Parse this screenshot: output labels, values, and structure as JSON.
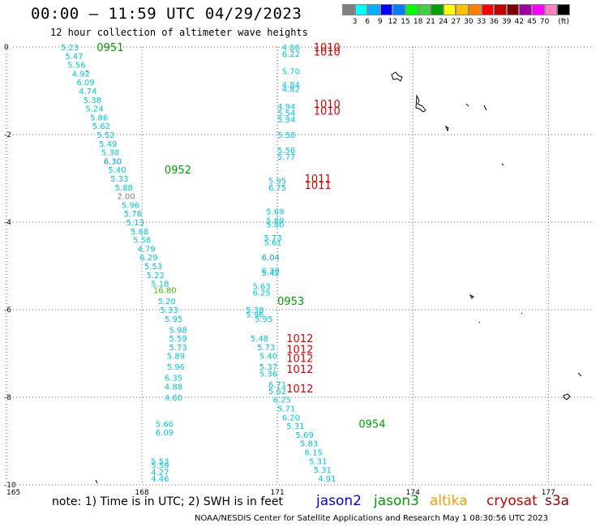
{
  "header": {
    "title": "00:00 – 11:59 UTC 04/29/2023",
    "subtitle": "12 hour collection of altimeter wave heights"
  },
  "legend": {
    "colors": [
      "#7f7f7f",
      "#00ffff",
      "#00b0ff",
      "#0000ff",
      "#0080ff",
      "#00ff00",
      "#40d040",
      "#00a000",
      "#ffff00",
      "#ffc000",
      "#ff8000",
      "#ff0000",
      "#c00000",
      "#800000",
      "#a000a0",
      "#ff00ff",
      "#ff80c0",
      "#000000"
    ],
    "labels": [
      "3",
      "6",
      "9",
      "12",
      "15",
      "18",
      "21",
      "24",
      "27",
      "30",
      "33",
      "36",
      "39",
      "42",
      "45",
      "70",
      "(ft)"
    ]
  },
  "footer": {
    "note": "note:  1) Time is in UTC;  2) SWH is in feet",
    "satellites": [
      {
        "name": "jason2",
        "color": "#0000ff"
      },
      {
        "name": "jason3",
        "color": "#00a000"
      },
      {
        "name": "altika",
        "color": "#ff9900"
      },
      {
        "name": "cryosat",
        "color": "#cc0000"
      },
      {
        "name": "s3a",
        "color": "#990000"
      }
    ],
    "credit": "NOAA/NESDIS Center for Satellite Applications and Research    May  1 08:30:56 UTC 2023"
  },
  "chart_data": {
    "type": "scatter",
    "xlim": [
      165,
      178
    ],
    "ylim": [
      -10,
      0
    ],
    "x_ticks": [
      "165",
      "168",
      "171",
      "174",
      "177"
    ],
    "y_ticks": [
      "0",
      "-2",
      "-4",
      "-6",
      "-8",
      "-10"
    ],
    "grid": "dotted",
    "times": [
      {
        "label": "0951",
        "x": 167.0,
        "y": 0.0,
        "color": "#00a000"
      },
      {
        "label": "0952",
        "x": 168.5,
        "y": -2.8,
        "color": "#00a000"
      },
      {
        "label": "0953",
        "x": 171.0,
        "y": -5.8,
        "color": "#00a000"
      },
      {
        "label": "0954",
        "x": 172.8,
        "y": -8.6,
        "color": "#00a000"
      },
      {
        "label": "1010",
        "x": 171.8,
        "y": 0.0,
        "color": "#dd0000"
      },
      {
        "label": "1010",
        "x": 171.8,
        "y": -0.1,
        "color": "#dd0000"
      },
      {
        "label": "1010",
        "x": 171.8,
        "y": -1.3,
        "color": "#dd0000"
      },
      {
        "label": "1010",
        "x": 171.8,
        "y": -1.45,
        "color": "#dd0000"
      },
      {
        "label": "1011",
        "x": 171.6,
        "y": -3.0,
        "color": "#dd0000"
      },
      {
        "label": "1011",
        "x": 171.6,
        "y": -3.15,
        "color": "#dd0000"
      },
      {
        "label": "1012",
        "x": 171.2,
        "y": -6.65,
        "color": "#dd0000"
      },
      {
        "label": "1012",
        "x": 171.2,
        "y": -6.9,
        "color": "#dd0000"
      },
      {
        "label": "1012",
        "x": 171.2,
        "y": -7.1,
        "color": "#dd0000"
      },
      {
        "label": "1012",
        "x": 171.2,
        "y": -7.35,
        "color": "#dd0000"
      },
      {
        "label": "1012",
        "x": 171.2,
        "y": -7.8,
        "color": "#dd0000"
      }
    ],
    "points": [
      {
        "x": 166.2,
        "y": 0.0,
        "v": "5.23",
        "c": "#00c8e0"
      },
      {
        "x": 166.3,
        "y": -0.2,
        "v": "5.47",
        "c": "#00c8e0"
      },
      {
        "x": 166.35,
        "y": -0.4,
        "v": "5.56",
        "c": "#00c8e0"
      },
      {
        "x": 166.45,
        "y": -0.6,
        "v": "4.92",
        "c": "#00c8e0"
      },
      {
        "x": 166.55,
        "y": -0.8,
        "v": "6.09",
        "c": "#00c8e0"
      },
      {
        "x": 166.6,
        "y": -1.0,
        "v": "4.74",
        "c": "#00c8e0"
      },
      {
        "x": 166.7,
        "y": -1.2,
        "v": "5.38",
        "c": "#00c8e0"
      },
      {
        "x": 166.75,
        "y": -1.4,
        "v": "5.24",
        "c": "#00c8e0"
      },
      {
        "x": 166.85,
        "y": -1.6,
        "v": "5.86",
        "c": "#00c8e0"
      },
      {
        "x": 166.9,
        "y": -1.8,
        "v": "5.62",
        "c": "#00c8e0"
      },
      {
        "x": 167.0,
        "y": -2.0,
        "v": "5.52",
        "c": "#00c8e0"
      },
      {
        "x": 167.05,
        "y": -2.2,
        "v": "5.49",
        "c": "#00c8e0"
      },
      {
        "x": 167.1,
        "y": -2.4,
        "v": "5.38",
        "c": "#00c8e0"
      },
      {
        "x": 167.15,
        "y": -2.6,
        "v": "6.30",
        "c": "#00a0d0"
      },
      {
        "x": 167.25,
        "y": -2.8,
        "v": "5.40",
        "c": "#00c8e0"
      },
      {
        "x": 167.3,
        "y": -3.0,
        "v": "5.33",
        "c": "#00c8e0"
      },
      {
        "x": 167.4,
        "y": -3.2,
        "v": "5.88",
        "c": "#00c8e0"
      },
      {
        "x": 167.45,
        "y": -3.4,
        "v": "2.00",
        "c": "#808080"
      },
      {
        "x": 167.55,
        "y": -3.6,
        "v": "5.96",
        "c": "#00c8e0"
      },
      {
        "x": 167.6,
        "y": -3.8,
        "v": "5.76",
        "c": "#00c8e0"
      },
      {
        "x": 167.65,
        "y": -4.0,
        "v": "5.13",
        "c": "#00c8e0"
      },
      {
        "x": 167.75,
        "y": -4.2,
        "v": "5.68",
        "c": "#00c8e0"
      },
      {
        "x": 167.8,
        "y": -4.4,
        "v": "5.58",
        "c": "#00c8e0"
      },
      {
        "x": 167.9,
        "y": -4.6,
        "v": "4.79",
        "c": "#00c8e0"
      },
      {
        "x": 167.95,
        "y": -4.8,
        "v": "6.29",
        "c": "#00c8e0"
      },
      {
        "x": 168.05,
        "y": -5.0,
        "v": "5.53",
        "c": "#00c8e0"
      },
      {
        "x": 168.1,
        "y": -5.2,
        "v": "5.22",
        "c": "#00c8e0"
      },
      {
        "x": 168.2,
        "y": -5.4,
        "v": "5.18",
        "c": "#00c8e0"
      },
      {
        "x": 168.25,
        "y": -5.55,
        "v": "16.80",
        "c": "#40c000"
      },
      {
        "x": 168.35,
        "y": -5.8,
        "v": "5.20",
        "c": "#00c8e0"
      },
      {
        "x": 168.4,
        "y": -6.0,
        "v": "5.33",
        "c": "#00c8e0"
      },
      {
        "x": 168.5,
        "y": -6.2,
        "v": "5.95",
        "c": "#00c8e0"
      },
      {
        "x": 168.6,
        "y": -6.45,
        "v": "5.98",
        "c": "#00c8e0"
      },
      {
        "x": 168.6,
        "y": -6.65,
        "v": "5.59",
        "c": "#00c8e0"
      },
      {
        "x": 168.6,
        "y": -6.85,
        "v": "5.73",
        "c": "#00c8e0"
      },
      {
        "x": 168.55,
        "y": -7.05,
        "v": "5.89",
        "c": "#00c8e0"
      },
      {
        "x": 168.55,
        "y": -7.3,
        "v": "5.96",
        "c": "#00c8e0"
      },
      {
        "x": 168.5,
        "y": -7.55,
        "v": "6.35",
        "c": "#00c8e0"
      },
      {
        "x": 168.5,
        "y": -7.75,
        "v": "4.88",
        "c": "#00c8e0"
      },
      {
        "x": 168.5,
        "y": -8.0,
        "v": "4.60",
        "c": "#00c8e0"
      },
      {
        "x": 168.3,
        "y": -8.6,
        "v": "5.66",
        "c": "#00c8e0"
      },
      {
        "x": 168.3,
        "y": -8.8,
        "v": "6.09",
        "c": "#00c8e0"
      },
      {
        "x": 168.2,
        "y": -9.45,
        "v": "5.53",
        "c": "#00c8e0"
      },
      {
        "x": 168.2,
        "y": -9.55,
        "v": "5.59",
        "c": "#00c8e0"
      },
      {
        "x": 168.2,
        "y": -9.7,
        "v": "4.27",
        "c": "#00c8e0"
      },
      {
        "x": 168.2,
        "y": -9.85,
        "v": "4.46",
        "c": "#00c8e0"
      },
      {
        "x": 171.1,
        "y": 0.0,
        "v": "4.86",
        "c": "#00c8e0"
      },
      {
        "x": 171.1,
        "y": -0.15,
        "v": "6.22",
        "c": "#00c8e0"
      },
      {
        "x": 171.1,
        "y": -0.55,
        "v": "5.70",
        "c": "#00c8e0"
      },
      {
        "x": 171.1,
        "y": -0.85,
        "v": "4.84",
        "c": "#00c8e0"
      },
      {
        "x": 171.1,
        "y": -0.95,
        "v": "4.82",
        "c": "#00c8e0"
      },
      {
        "x": 171.0,
        "y": -1.35,
        "v": "4.94",
        "c": "#00c8e0"
      },
      {
        "x": 171.0,
        "y": -1.5,
        "v": "5.54",
        "c": "#00c8e0"
      },
      {
        "x": 171.0,
        "y": -1.65,
        "v": "5.94",
        "c": "#00c8e0"
      },
      {
        "x": 171.0,
        "y": -2.0,
        "v": "5.58",
        "c": "#00c8e0"
      },
      {
        "x": 171.0,
        "y": -2.35,
        "v": "5.56",
        "c": "#00c8e0"
      },
      {
        "x": 171.0,
        "y": -2.5,
        "v": "5.77",
        "c": "#00c8e0"
      },
      {
        "x": 170.8,
        "y": -3.05,
        "v": "5.95",
        "c": "#00c8e0"
      },
      {
        "x": 170.8,
        "y": -3.2,
        "v": "6.75",
        "c": "#00c8e0"
      },
      {
        "x": 170.75,
        "y": -3.75,
        "v": "5.69",
        "c": "#00c8e0"
      },
      {
        "x": 170.75,
        "y": -3.95,
        "v": "5.69",
        "c": "#00c8e0"
      },
      {
        "x": 170.75,
        "y": -4.05,
        "v": "5.80",
        "c": "#00c8e0"
      },
      {
        "x": 170.7,
        "y": -4.35,
        "v": "5.73",
        "c": "#00c8e0"
      },
      {
        "x": 170.7,
        "y": -4.45,
        "v": "5.61",
        "c": "#00c8e0"
      },
      {
        "x": 170.65,
        "y": -4.8,
        "v": "6.04",
        "c": "#00a0d0"
      },
      {
        "x": 170.65,
        "y": -5.1,
        "v": "6.30",
        "c": "#00c8e0"
      },
      {
        "x": 170.65,
        "y": -5.15,
        "v": "5.42",
        "c": "#00c8e0"
      },
      {
        "x": 170.45,
        "y": -5.45,
        "v": "5.63",
        "c": "#00c8e0"
      },
      {
        "x": 170.45,
        "y": -5.6,
        "v": "6.25",
        "c": "#00c8e0"
      },
      {
        "x": 170.3,
        "y": -6.0,
        "v": "5.38",
        "c": "#00c8e0"
      },
      {
        "x": 170.3,
        "y": -6.1,
        "v": "5.96",
        "c": "#00c8e0"
      },
      {
        "x": 170.5,
        "y": -6.2,
        "v": "5.95",
        "c": "#00c8e0"
      },
      {
        "x": 170.4,
        "y": -6.65,
        "v": "5.48",
        "c": "#00c8e0"
      },
      {
        "x": 170.55,
        "y": -6.85,
        "v": "5.73",
        "c": "#00c8e0"
      },
      {
        "x": 170.6,
        "y": -7.05,
        "v": "5.40",
        "c": "#00c8e0"
      },
      {
        "x": 170.6,
        "y": -7.3,
        "v": "5.37",
        "c": "#00c8e0"
      },
      {
        "x": 170.6,
        "y": -7.45,
        "v": "5.36",
        "c": "#00c8e0"
      },
      {
        "x": 170.8,
        "y": -7.7,
        "v": "6.71",
        "c": "#00c8e0"
      },
      {
        "x": 170.8,
        "y": -7.85,
        "v": "5.62",
        "c": "#00c8e0"
      },
      {
        "x": 170.9,
        "y": -8.05,
        "v": "6.25",
        "c": "#00c8e0"
      },
      {
        "x": 171.0,
        "y": -8.25,
        "v": "5.71",
        "c": "#00c8e0"
      },
      {
        "x": 171.1,
        "y": -8.45,
        "v": "6.20",
        "c": "#00c8e0"
      },
      {
        "x": 171.2,
        "y": -8.65,
        "v": "5.31",
        "c": "#00c8e0"
      },
      {
        "x": 171.4,
        "y": -8.85,
        "v": "5.69",
        "c": "#00c8e0"
      },
      {
        "x": 171.5,
        "y": -9.05,
        "v": "5.83",
        "c": "#00c8e0"
      },
      {
        "x": 171.6,
        "y": -9.25,
        "v": "6.15",
        "c": "#00c8e0"
      },
      {
        "x": 171.7,
        "y": -9.45,
        "v": "5.31",
        "c": "#00c8e0"
      },
      {
        "x": 171.8,
        "y": -9.65,
        "v": "5.31",
        "c": "#00c8e0"
      },
      {
        "x": 171.9,
        "y": -9.85,
        "v": "4.91",
        "c": "#00c8e0"
      }
    ]
  }
}
